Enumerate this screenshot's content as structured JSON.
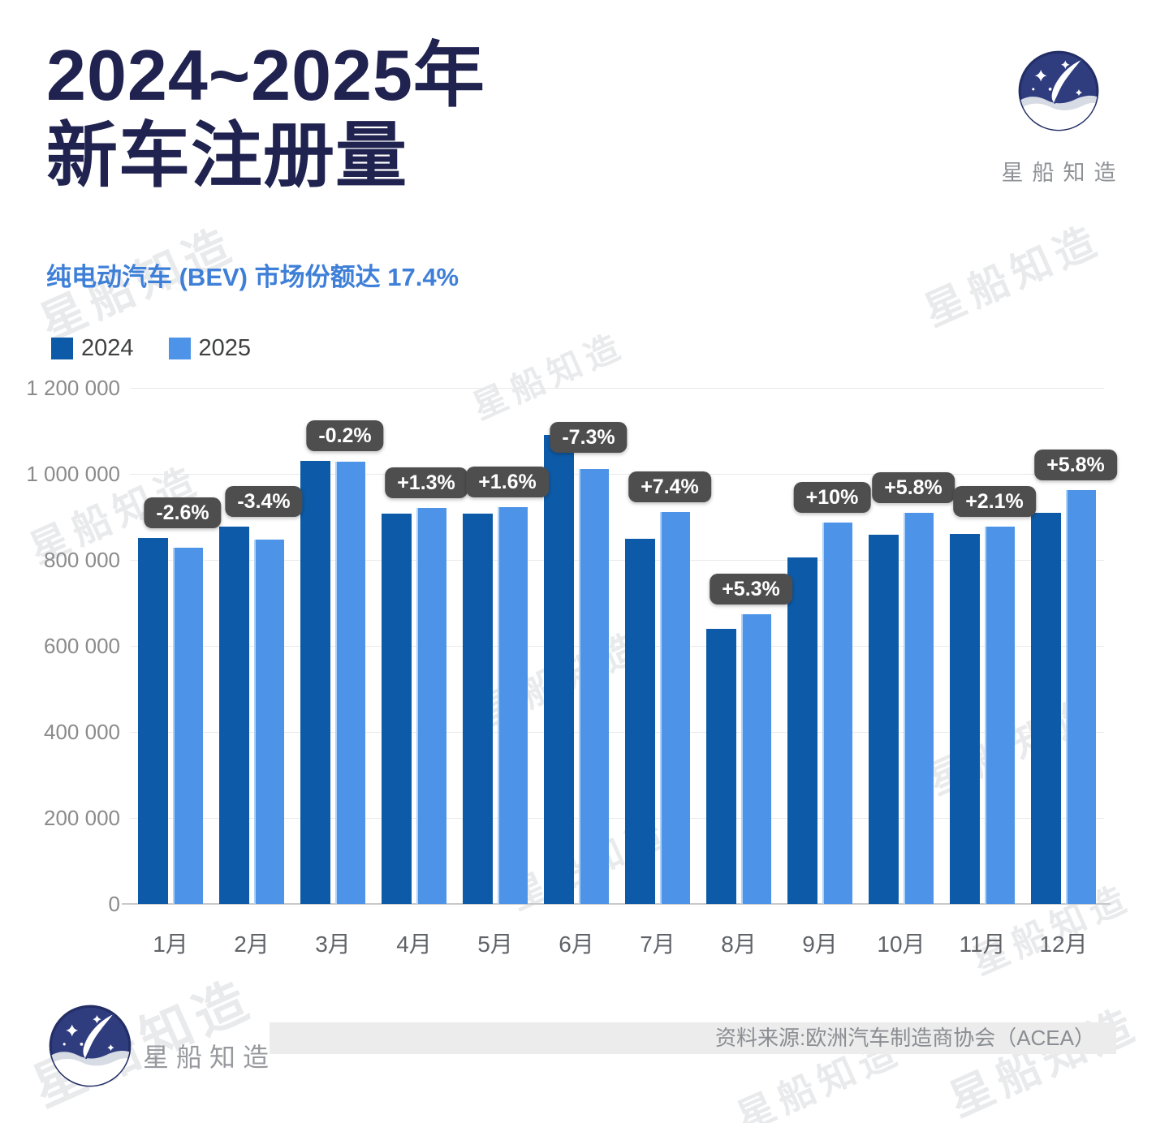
{
  "header": {
    "title_line1": "2024~2025年",
    "title_line2": "新车注册量",
    "subtitle": "纯电动汽车 (BEV) 市场份额达 17.4%",
    "brand_name": "星船知造"
  },
  "legend": [
    {
      "label": "2024",
      "color": "#0d5ba8"
    },
    {
      "label": "2025",
      "color": "#4d94e8"
    }
  ],
  "chart_data": {
    "type": "bar",
    "title": "2024~2025年新车注册量",
    "categories": [
      "1月",
      "2月",
      "3月",
      "4月",
      "5月",
      "6月",
      "7月",
      "8月",
      "9月",
      "10月",
      "11月",
      "12月"
    ],
    "series": [
      {
        "name": "2024",
        "color": "#0d5ba8",
        "values": [
          851000,
          877000,
          1030000,
          908000,
          908000,
          1091000,
          849000,
          640000,
          806000,
          859000,
          860000,
          909000
        ]
      },
      {
        "name": "2025",
        "color": "#4d94e8",
        "values": [
          829000,
          847000,
          1028000,
          920000,
          923000,
          1011000,
          912000,
          674000,
          887000,
          909000,
          878000,
          962000
        ]
      }
    ],
    "change_labels": [
      "-2.6%",
      "-3.4%",
      "-0.2%",
      "+1.3%",
      "+1.6%",
      "-7.3%",
      "+7.4%",
      "+5.3%",
      "+10%",
      "+5.8%",
      "+2.1%",
      "+5.8%"
    ],
    "xlabel": "",
    "ylabel": "",
    "ylim": [
      0,
      1200000
    ],
    "y_ticks": [
      "1 200 000",
      "1 000 000",
      "800 000",
      "600 000",
      "400 000",
      "200 000",
      "0"
    ],
    "grid": true,
    "legend_position": "top-left"
  },
  "footer": {
    "brand_name": "星船知造",
    "source": "资料来源:欧洲汽车制造商协会（ACEA）"
  },
  "watermark_text": "星船知造",
  "colors": {
    "title": "#20224f",
    "subtitle": "#3e7fd8",
    "bar_2024": "#0d5ba8",
    "bar_2025": "#4d94e8",
    "badge_bg": "#4e4e4e",
    "badge_text": "#ffffff",
    "logo_navy": "#2f3c7e"
  }
}
